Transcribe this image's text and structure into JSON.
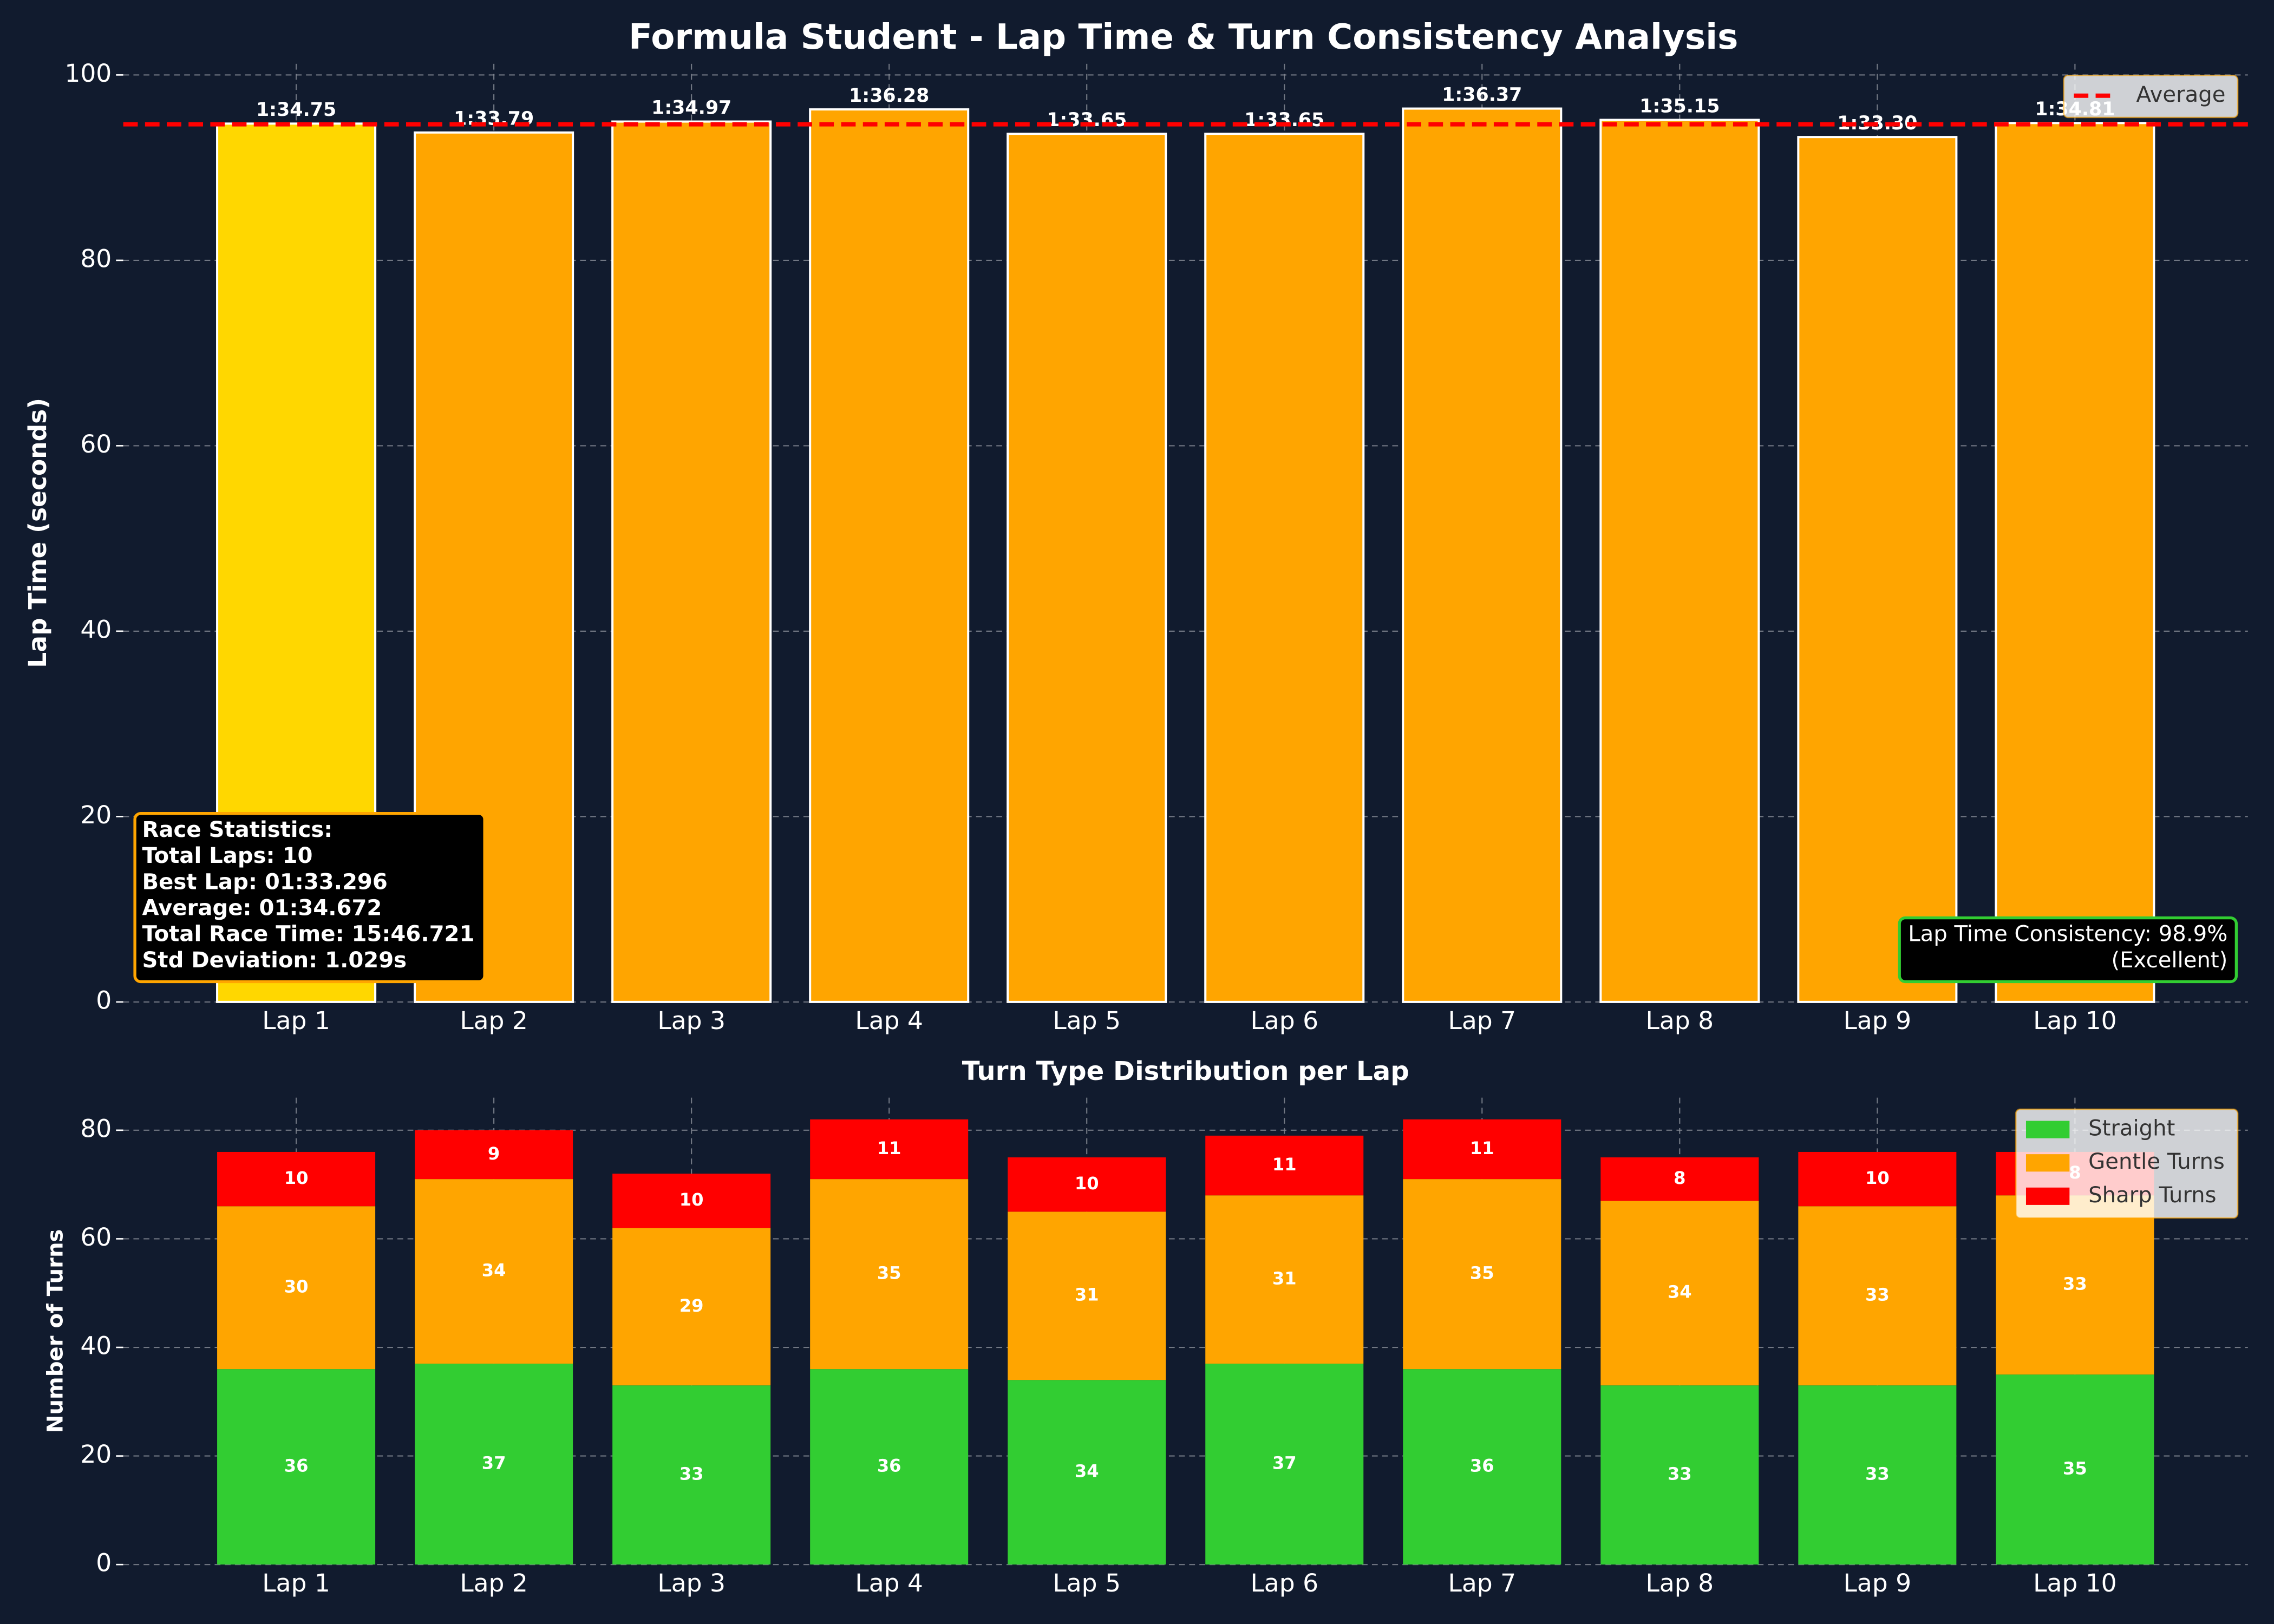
{
  "title": "Formula Student - Lap Time & Turn Consistency Analysis",
  "chart_data": [
    {
      "type": "bar",
      "ylabel": "Lap Time (seconds)",
      "categories": [
        "Lap 1",
        "Lap 2",
        "Lap 3",
        "Lap 4",
        "Lap 5",
        "Lap 6",
        "Lap 7",
        "Lap 8",
        "Lap 9",
        "Lap 10"
      ],
      "values": [
        94.75,
        93.79,
        94.97,
        96.28,
        93.65,
        93.65,
        96.37,
        95.15,
        93.3,
        94.81
      ],
      "value_labels": [
        "1:34.75",
        "1:33.79",
        "1:34.97",
        "1:36.28",
        "1:33.65",
        "1:33.65",
        "1:36.37",
        "1:35.15",
        "1:33.30",
        "1:34.81"
      ],
      "colors": [
        "#ffd700",
        "#ffa500",
        "#ffa500",
        "#ffa500",
        "#ffa500",
        "#ffa500",
        "#ffa500",
        "#ffa500",
        "#ffa500",
        "#ffa500"
      ],
      "edgecolor": "#ffffff",
      "reference_line": {
        "value": 94.672,
        "label": "Average",
        "color": "#ff0000"
      },
      "ylim": [
        0,
        101.2
      ],
      "yticks": [
        0,
        20,
        40,
        60,
        80,
        100
      ],
      "grid": true,
      "legend": "upper right",
      "annotations": [
        {
          "corner": "lower left",
          "border": "#ffa500",
          "bold": true,
          "lines": [
            "Race Statistics:",
            "Total Laps: 10",
            "Best Lap: 01:33.296",
            "Average: 01:34.672",
            "Total Race Time: 15:46.721",
            "Std Deviation: 1.029s"
          ]
        },
        {
          "corner": "lower right",
          "border": "#32cd32",
          "bold": false,
          "lines": [
            "Lap Time Consistency: 98.9%",
            "(Excellent)"
          ]
        }
      ]
    },
    {
      "type": "stacked_bar",
      "title": "Turn Type Distribution per Lap",
      "ylabel": "Number of Turns",
      "categories": [
        "Lap 1",
        "Lap 2",
        "Lap 3",
        "Lap 4",
        "Lap 5",
        "Lap 6",
        "Lap 7",
        "Lap 8",
        "Lap 9",
        "Lap 10"
      ],
      "series": [
        {
          "name": "Straight",
          "color": "#32cd32",
          "values": [
            36,
            37,
            33,
            36,
            34,
            37,
            36,
            33,
            33,
            35
          ]
        },
        {
          "name": "Gentle Turns",
          "color": "#ffa500",
          "values": [
            30,
            34,
            29,
            35,
            31,
            31,
            35,
            34,
            33,
            33
          ]
        },
        {
          "name": "Sharp Turns",
          "color": "#ff0000",
          "values": [
            10,
            9,
            10,
            11,
            10,
            11,
            11,
            8,
            10,
            8
          ]
        }
      ],
      "ylim": [
        0,
        86
      ],
      "yticks": [
        0,
        20,
        40,
        60,
        80
      ],
      "grid": true,
      "legend": "upper right"
    }
  ]
}
